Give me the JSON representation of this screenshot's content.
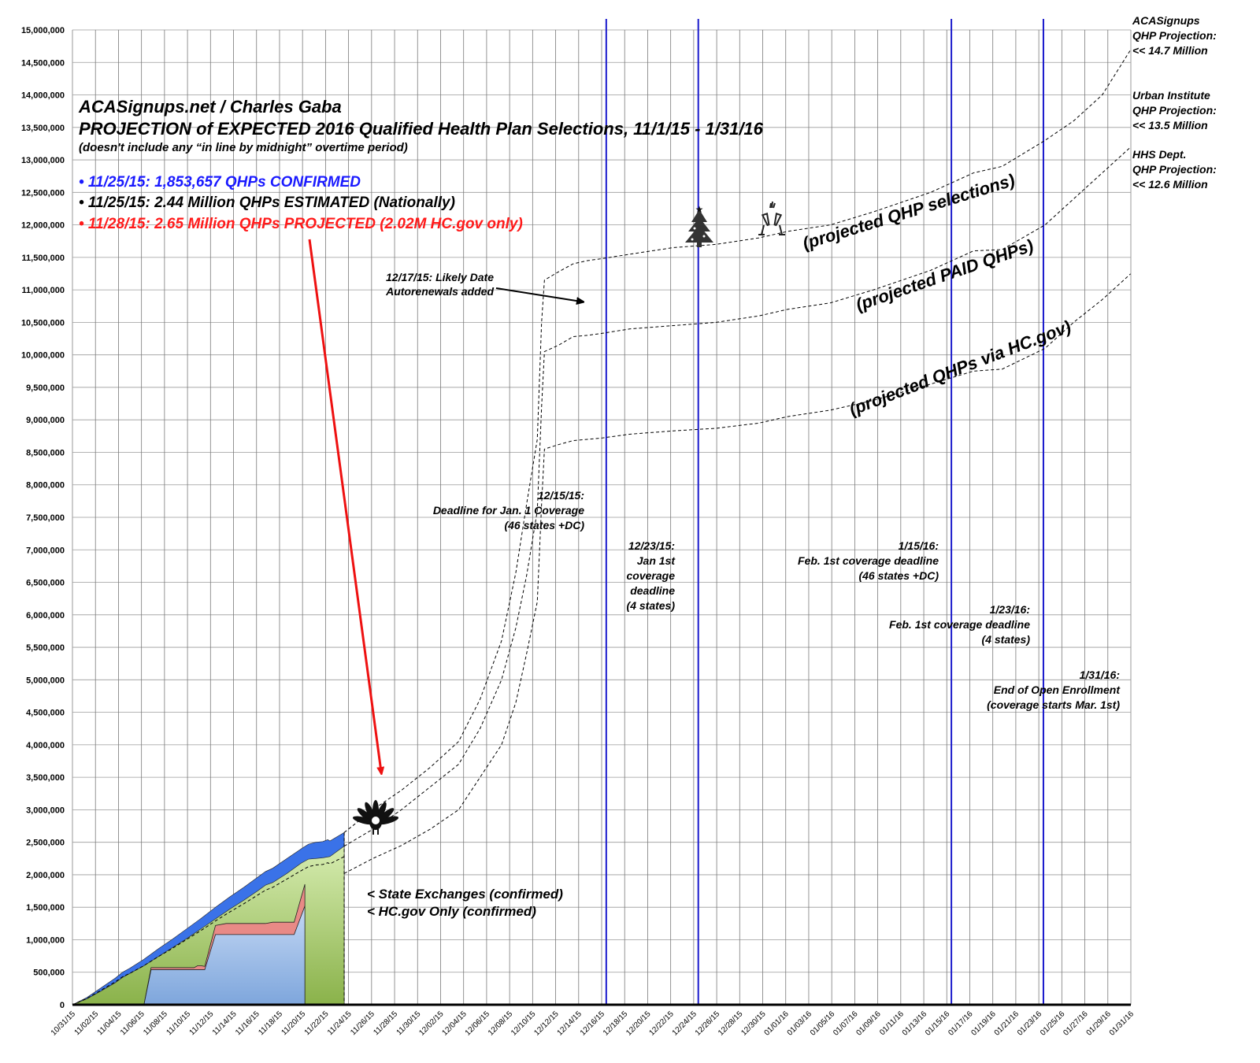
{
  "chart_data": {
    "type": "area",
    "title": "ACASignups.net / Charles Gaba",
    "subtitle": "PROJECTION of EXPECTED 2016 Qualified Health Plan Selections, 11/1/15 - 1/31/16",
    "note": "(doesn't include any “in line by midnight” overtime period)",
    "stats": [
      {
        "text": "• 11/25/15: 1,853,657 QHPs CONFIRMED",
        "color": "#1a1aff"
      },
      {
        "text": "• 11/25/15: 2.44 Million QHPs ESTIMATED (Nationally)",
        "color": "#000000"
      },
      {
        "text": "• 11/28/15: 2.65 Million QHPs PROJECTED (2.02M HC.gov only)",
        "color": "#ff1a1a"
      }
    ],
    "ylim": [
      0,
      15000000
    ],
    "y_ticks": [
      "0",
      "500,000",
      "1,000,000",
      "1,500,000",
      "2,000,000",
      "2,500,000",
      "3,000,000",
      "3,500,000",
      "4,000,000",
      "4,500,000",
      "5,000,000",
      "5,500,000",
      "6,000,000",
      "6,500,000",
      "7,000,000",
      "7,500,000",
      "8,000,000",
      "8,500,000",
      "9,000,000",
      "9,500,000",
      "10,000,000",
      "10,500,000",
      "11,000,000",
      "11,500,000",
      "12,000,000",
      "12,500,000",
      "13,000,000",
      "13,500,000",
      "14,000,000",
      "14,500,000",
      "15,000,000"
    ],
    "x_ticks": [
      "10/31/15",
      "11/02/15",
      "11/04/15",
      "11/06/15",
      "11/08/15",
      "11/10/15",
      "11/12/15",
      "11/14/15",
      "11/16/15",
      "11/18/15",
      "11/20/15",
      "11/22/15",
      "11/24/15",
      "11/26/15",
      "11/28/15",
      "11/30/15",
      "12/02/15",
      "12/04/15",
      "12/06/15",
      "12/08/15",
      "12/10/15",
      "12/12/15",
      "12/14/15",
      "12/16/15",
      "12/18/15",
      "12/20/15",
      "12/22/15",
      "12/24/15",
      "12/26/15",
      "12/28/15",
      "12/30/15",
      "01/01/16",
      "01/03/16",
      "01/05/16",
      "01/07/16",
      "01/09/16",
      "01/11/16",
      "01/13/16",
      "01/15/16",
      "01/17/16",
      "01/19/16",
      "01/21/16",
      "01/23/16",
      "01/25/16",
      "01/27/16",
      "01/29/16",
      "01/31/16"
    ],
    "x_range_days": [
      0,
      92
    ],
    "deadline_days": [
      46.2,
      54.2,
      76.2,
      84.2
    ],
    "confirmed_series": {
      "total_projected": [
        [
          0,
          0
        ],
        [
          2,
          110000
        ],
        [
          4,
          260000
        ],
        [
          6,
          410000
        ],
        [
          7,
          500000
        ],
        [
          8,
          560000
        ],
        [
          10,
          700000
        ],
        [
          12,
          860000
        ],
        [
          14,
          1010000
        ],
        [
          16,
          1170000
        ],
        [
          18,
          1330000
        ],
        [
          20,
          1500000
        ],
        [
          22,
          1660000
        ],
        [
          24,
          1810000
        ],
        [
          26,
          1970000
        ],
        [
          27,
          2050000
        ],
        [
          28,
          2100000
        ],
        [
          30,
          2250000
        ],
        [
          32,
          2400000
        ],
        [
          33,
          2470000
        ],
        [
          34,
          2500000
        ],
        [
          35,
          2510000
        ],
        [
          35.7,
          2540000
        ],
        [
          36,
          2520000
        ],
        [
          38,
          2650000
        ]
      ],
      "estimated_nationally": [
        [
          0,
          0
        ],
        [
          2,
          90000
        ],
        [
          4,
          210000
        ],
        [
          6,
          340000
        ],
        [
          7,
          420000
        ],
        [
          8,
          480000
        ],
        [
          10,
          600000
        ],
        [
          12,
          740000
        ],
        [
          14,
          880000
        ],
        [
          16,
          1020000
        ],
        [
          18,
          1170000
        ],
        [
          20,
          1320000
        ],
        [
          22,
          1470000
        ],
        [
          24,
          1610000
        ],
        [
          26,
          1760000
        ],
        [
          27,
          1840000
        ],
        [
          28,
          1880000
        ],
        [
          30,
          2020000
        ],
        [
          32,
          2180000
        ],
        [
          33,
          2240000
        ],
        [
          34,
          2250000
        ],
        [
          35,
          2260000
        ],
        [
          36,
          2280000
        ],
        [
          38,
          2440000
        ]
      ],
      "state_exchanges_confirmed": [
        [
          10,
          0
        ],
        [
          11,
          570000
        ],
        [
          17,
          570000
        ],
        [
          17.5,
          600000
        ],
        [
          18,
          600000
        ],
        [
          18.5,
          590000
        ],
        [
          20,
          1220000
        ],
        [
          21.5,
          1250000
        ],
        [
          27,
          1250000
        ],
        [
          28,
          1270000
        ],
        [
          31,
          1270000
        ],
        [
          32.5,
          1853657
        ],
        [
          32.5,
          0
        ]
      ],
      "hcgov_confirmed": [
        [
          10,
          0
        ],
        [
          11,
          540000
        ],
        [
          17,
          540000
        ],
        [
          17.5,
          540000
        ],
        [
          18,
          540000
        ],
        [
          18.5,
          540000
        ],
        [
          20,
          1080000
        ],
        [
          21.5,
          1080000
        ],
        [
          27,
          1080000
        ],
        [
          28,
          1080000
        ],
        [
          31,
          1080000
        ],
        [
          32.5,
          1520000
        ],
        [
          32.5,
          0
        ]
      ]
    },
    "series": [
      {
        "name": "(projected QHP selections)",
        "values": [
          [
            38,
            2650000
          ],
          [
            42,
            3000000
          ],
          [
            46,
            3300000
          ],
          [
            50,
            3650000
          ],
          [
            54,
            4050000
          ],
          [
            57,
            4700000
          ],
          [
            60,
            5600000
          ],
          [
            62,
            6650000
          ],
          [
            63.5,
            7700000
          ],
          [
            65,
            8700000
          ],
          [
            65.6,
            10500000
          ],
          [
            66,
            11150000
          ],
          [
            68,
            11280000
          ],
          [
            70,
            11400000
          ],
          [
            72,
            11450000
          ],
          [
            74,
            11480000
          ],
          [
            78,
            11550000
          ],
          [
            84,
            11650000
          ],
          [
            90,
            11700000
          ],
          [
            96,
            11800000
          ],
          [
            100,
            11900000
          ],
          [
            106,
            12000000
          ],
          [
            112,
            12200000
          ],
          [
            120,
            12500000
          ],
          [
            126,
            12800000
          ],
          [
            130,
            12900000
          ],
          [
            136,
            13300000
          ],
          [
            140,
            13600000
          ],
          [
            144,
            14000000
          ],
          [
            148,
            14700000
          ]
        ]
      },
      {
        "name": "(projected PAID QHPs)",
        "values": [
          [
            38,
            2440000
          ],
          [
            42,
            2700000
          ],
          [
            46,
            3000000
          ],
          [
            50,
            3350000
          ],
          [
            54,
            3700000
          ],
          [
            57,
            4250000
          ],
          [
            60,
            5000000
          ],
          [
            62,
            5800000
          ],
          [
            63.5,
            6600000
          ],
          [
            65,
            7600000
          ],
          [
            65.6,
            9200000
          ],
          [
            66,
            10050000
          ],
          [
            68,
            10150000
          ],
          [
            70,
            10280000
          ],
          [
            72,
            10300000
          ],
          [
            74,
            10330000
          ],
          [
            78,
            10400000
          ],
          [
            84,
            10450000
          ],
          [
            90,
            10500000
          ],
          [
            96,
            10600000
          ],
          [
            100,
            10700000
          ],
          [
            106,
            10800000
          ],
          [
            112,
            11000000
          ],
          [
            120,
            11300000
          ],
          [
            126,
            11600000
          ],
          [
            130,
            11620000
          ],
          [
            136,
            12000000
          ],
          [
            140,
            12400000
          ],
          [
            144,
            12800000
          ],
          [
            148,
            13200000
          ]
        ]
      },
      {
        "name": "(projected QHPs via HC.gov)",
        "values": [
          [
            38,
            2020000
          ],
          [
            42,
            2250000
          ],
          [
            46,
            2450000
          ],
          [
            50,
            2700000
          ],
          [
            54,
            3000000
          ],
          [
            57,
            3500000
          ],
          [
            60,
            4000000
          ],
          [
            62,
            4650000
          ],
          [
            63.5,
            5400000
          ],
          [
            65,
            6200000
          ],
          [
            65.6,
            7700000
          ],
          [
            66,
            8550000
          ],
          [
            68,
            8620000
          ],
          [
            70,
            8680000
          ],
          [
            72,
            8700000
          ],
          [
            74,
            8720000
          ],
          [
            78,
            8780000
          ],
          [
            84,
            8830000
          ],
          [
            90,
            8870000
          ],
          [
            96,
            8950000
          ],
          [
            100,
            9050000
          ],
          [
            106,
            9150000
          ],
          [
            112,
            9300000
          ],
          [
            120,
            9550000
          ],
          [
            126,
            9750000
          ],
          [
            130,
            9780000
          ],
          [
            136,
            10100000
          ],
          [
            140,
            10500000
          ],
          [
            144,
            10850000
          ],
          [
            148,
            11250000
          ]
        ]
      }
    ],
    "projection_labels": [
      {
        "text": "ACASignups",
        "line2": "QHP Projection:",
        "line3": "<< 14.7 Million"
      },
      {
        "text": "Urban Institute",
        "line2": "QHP Projection:",
        "line3": "<< 13.5 Million"
      },
      {
        "text": "HHS Dept.",
        "line2": "QHP Projection:",
        "line3": "<< 12.6 Million"
      }
    ],
    "annotations": {
      "autorenewals": [
        "12/17/15: Likely Date",
        "Autorenewals added"
      ],
      "deadline_1215": [
        "12/15/15:",
        "Deadline for Jan. 1 Coverage",
        "(46 states +DC)"
      ],
      "deadline_1223": [
        "12/23/15:",
        "Jan 1st",
        "coverage",
        "deadline",
        "(4 states)"
      ],
      "deadline_0115": [
        "1/15/16:",
        "Feb. 1st coverage deadline",
        "(46 states +DC)"
      ],
      "deadline_0123": [
        "1/23/16:",
        "Feb. 1st coverage deadline",
        "(4 states)"
      ],
      "deadline_0131": [
        "1/31/16:",
        "End of Open Enrollment",
        "(coverage starts Mar. 1st)"
      ],
      "state_exchanges": "< State Exchanges (confirmed)",
      "hcgov_only": "< HC.gov Only (confirmed)"
    },
    "colors": {
      "blue_area": "#3a72e8",
      "green_area": "#9cc45c",
      "red_area": "#e88a86",
      "hcgov_area": "#a8c4ec",
      "deadline_line": "#1a1acc",
      "arrow_red": "#ee1111"
    },
    "icons": [
      "turkey-icon",
      "christmas-tree-icon",
      "champagne-icon"
    ],
    "grid": true
  }
}
